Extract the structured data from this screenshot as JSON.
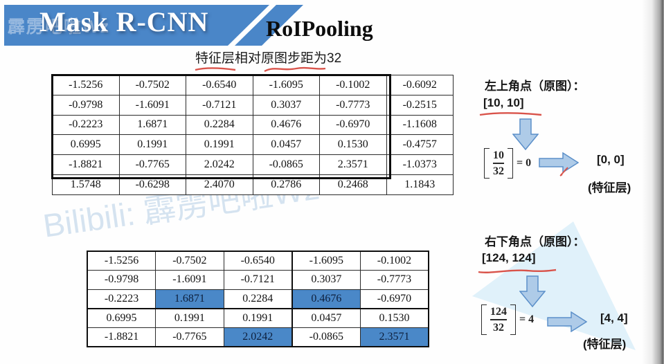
{
  "banner": {
    "title": "Mask R-CNN",
    "watermark": "霹雳吧啦Wz"
  },
  "page": {
    "section_title": "RoIPooling",
    "subtitle": "特征层相对原图步距为32"
  },
  "watermark": {
    "diagonal": "Bilibili: 霹雳吧啦Wz"
  },
  "colors": {
    "banner_blue": "#4a86c8",
    "highlight_blue": "#4a88c8",
    "arrow_fill": "#aecbe8",
    "arrow_stroke": "#5b8fc9",
    "triangle_blue": "#daeef9",
    "red_pen": "#d9534a"
  },
  "feature_table": {
    "rows": [
      [
        "-1.5256",
        "-0.7502",
        "-0.6540",
        "-1.6095",
        "-0.1002",
        "-0.6092"
      ],
      [
        "-0.9798",
        "-1.6091",
        "-0.7121",
        "0.3037",
        "-0.7773",
        "-0.2515"
      ],
      [
        "-0.2223",
        "1.6871",
        "0.2284",
        "0.4676",
        "-0.6970",
        "-1.1608"
      ],
      [
        "0.6995",
        "0.1991",
        "0.1991",
        "0.0457",
        "0.1530",
        "-0.4757"
      ],
      [
        "-1.8821",
        "-0.7765",
        "2.0242",
        "-0.0865",
        "2.3571",
        "-1.0373"
      ],
      [
        "1.5748",
        "-0.6298",
        "2.4070",
        "0.2786",
        "0.2468",
        "1.1843"
      ]
    ]
  },
  "roi_table": {
    "rows": [
      [
        "-1.5256",
        "-0.7502",
        "-0.6540",
        "-1.6095",
        "-0.1002"
      ],
      [
        "-0.9798",
        "-1.6091",
        "-0.7121",
        "0.3037",
        "-0.7773"
      ],
      [
        "-0.2223",
        "1.6871",
        "0.2284",
        "0.4676",
        "-0.6970"
      ],
      [
        "0.6995",
        "0.1991",
        "0.1991",
        "0.0457",
        "0.1530"
      ],
      [
        "-1.8821",
        "-0.7765",
        "2.0242",
        "-0.0865",
        "2.3571"
      ]
    ],
    "highlights": [
      [
        2,
        1
      ],
      [
        2,
        3
      ],
      [
        4,
        2
      ],
      [
        4,
        4
      ]
    ]
  },
  "top_left_point": {
    "label": "左上角点（原图）：",
    "coords": "[10, 10]",
    "numerator": "10",
    "denominator": "32",
    "equals": "= 0",
    "result": "[0, 0]",
    "layer_label": "(特征层)"
  },
  "bottom_right_point": {
    "label": "右下角点（原图）：",
    "coords": "[124, 124]",
    "numerator": "124",
    "denominator": "32",
    "equals": "= 4",
    "result": "[4, 4]",
    "layer_label": "(特征层)"
  }
}
